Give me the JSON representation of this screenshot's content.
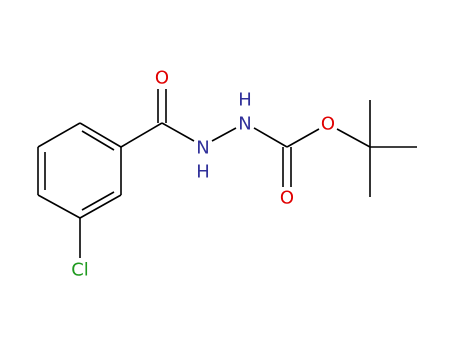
{
  "atoms": [
    {
      "label": "O"
    },
    {
      "label": "N"
    },
    {
      "label": "H"
    },
    {
      "label": "N"
    },
    {
      "label": "H"
    },
    {
      "label": "O"
    },
    {
      "label": "O"
    },
    {
      "label": "Cl"
    }
  ]
}
